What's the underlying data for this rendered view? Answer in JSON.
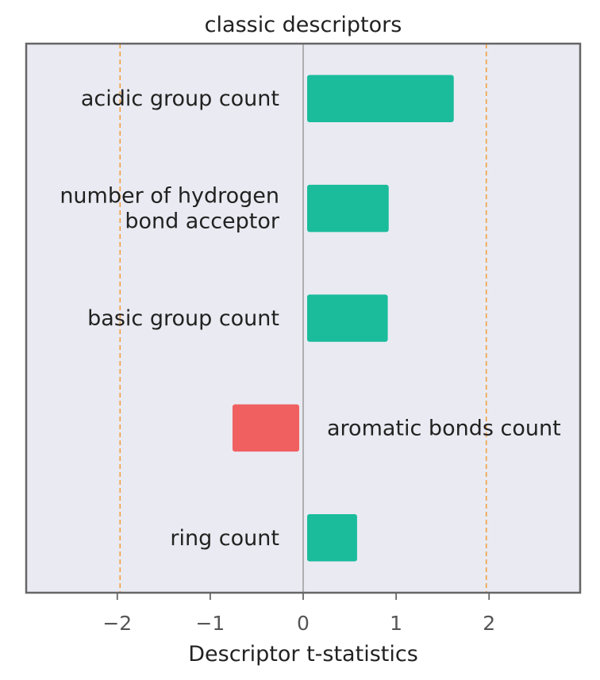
{
  "chart_data": {
    "type": "bar",
    "orientation": "horizontal",
    "title": "classic descriptors",
    "xlabel": "Descriptor t-statistics",
    "ylabel": "",
    "xlim": [
      -2.98,
      2.98
    ],
    "xticks": [
      "−2",
      "−1",
      "0",
      "1",
      "2"
    ],
    "xtick_values": [
      -2,
      -1,
      0,
      1,
      2
    ],
    "reference_lines": [
      -1.97,
      1.97
    ],
    "grid": false,
    "legend": "none",
    "categories": [
      [
        "acidic group count"
      ],
      [
        "number of hydrogen",
        "bond acceptor"
      ],
      [
        "basic group count"
      ],
      [
        "aromatic bonds count"
      ],
      [
        "ring count"
      ]
    ],
    "values": [
      1.62,
      0.92,
      0.91,
      -0.76,
      0.58
    ],
    "colors": {
      "positive": "#1abc9c",
      "negative": "#f06060",
      "background": "#eaeaf2",
      "frame": "#666666",
      "zero_line": "#888888",
      "reference_line": "#f0a040"
    }
  }
}
